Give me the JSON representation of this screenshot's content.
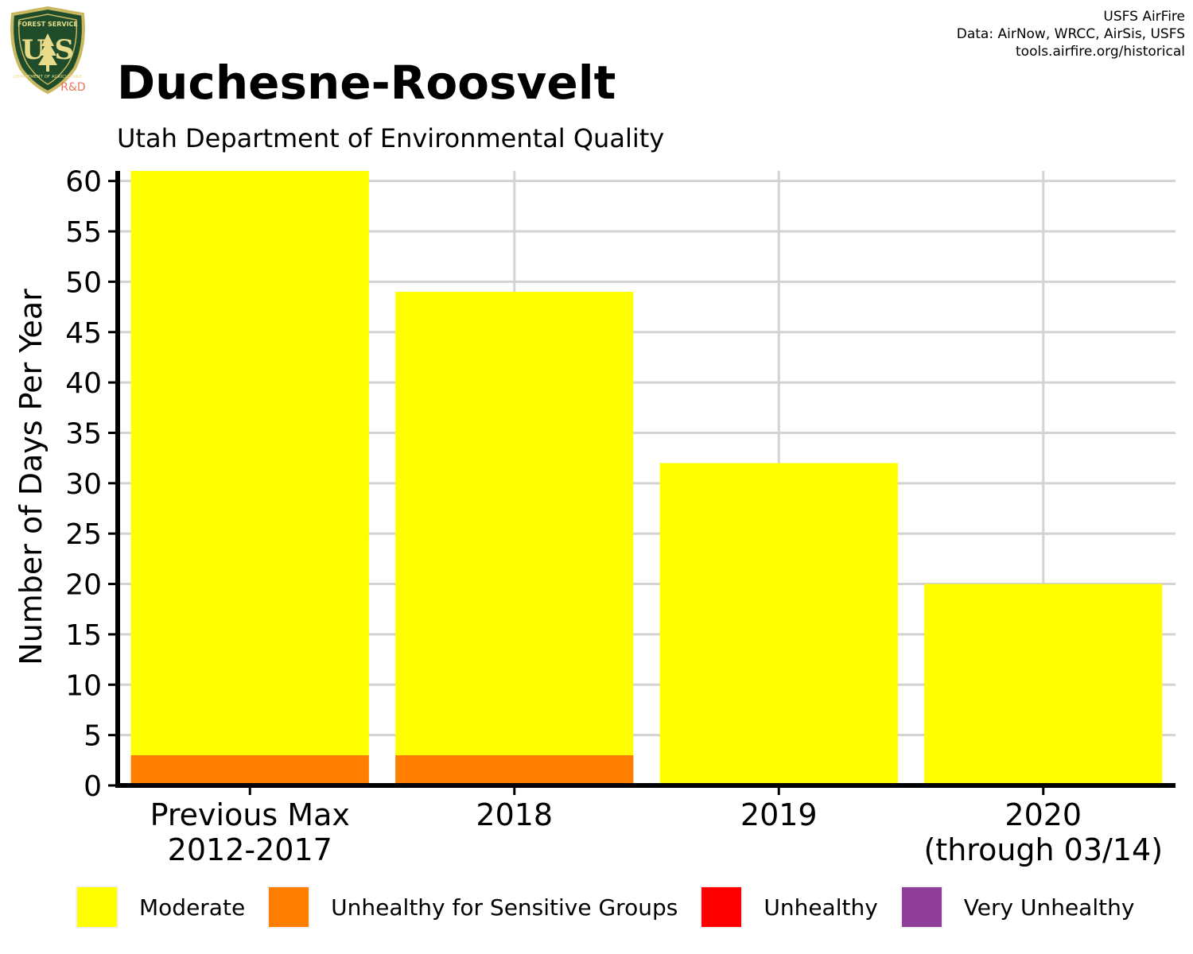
{
  "header": {
    "logo_text_top": "FOREST SERVICE",
    "logo_text_bottom": "DEPARTMENT OF AGRICULTURE",
    "logo_us": "U S",
    "logo_rd": "R&D",
    "credits": [
      "USFS AirFire",
      "Data: AirNow, WRCC, AirSis, USFS",
      "tools.airfire.org/historical"
    ]
  },
  "chart_data": {
    "type": "bar",
    "stacked": true,
    "title": "Duchesne-Roosvelt",
    "subtitle": "Utah Department of Environmental Quality",
    "xlabel": "",
    "ylabel": "Number of Days Per Year",
    "ylim": [
      0,
      61
    ],
    "yticks": [
      0,
      5,
      10,
      15,
      20,
      25,
      30,
      35,
      40,
      45,
      50,
      55,
      60
    ],
    "grid": true,
    "categories": [
      [
        "Previous Max",
        "2012-2017"
      ],
      [
        "2018"
      ],
      [
        "2019"
      ],
      [
        "2020",
        "(through 03/14)"
      ]
    ],
    "series": [
      {
        "name": "Unhealthy for Sensitive Groups",
        "color": "#ff7e00",
        "values": [
          3,
          3,
          0,
          0
        ]
      },
      {
        "name": "Moderate",
        "color": "#ffff00",
        "values": [
          58,
          46,
          32,
          20
        ]
      },
      {
        "name": "Unhealthy",
        "color": "#ff0000",
        "values": [
          0,
          0,
          0,
          0
        ]
      },
      {
        "name": "Very Unhealthy",
        "color": "#8f3f97",
        "values": [
          0,
          0,
          0,
          0
        ]
      }
    ],
    "legend": {
      "placement": "bottom",
      "items": [
        {
          "label": "Moderate",
          "color": "#ffff00"
        },
        {
          "label": "Unhealthy for Sensitive Groups",
          "color": "#ff7e00"
        },
        {
          "label": "Unhealthy",
          "color": "#ff0000"
        },
        {
          "label": "Very Unhealthy",
          "color": "#8f3f97"
        }
      ]
    }
  }
}
